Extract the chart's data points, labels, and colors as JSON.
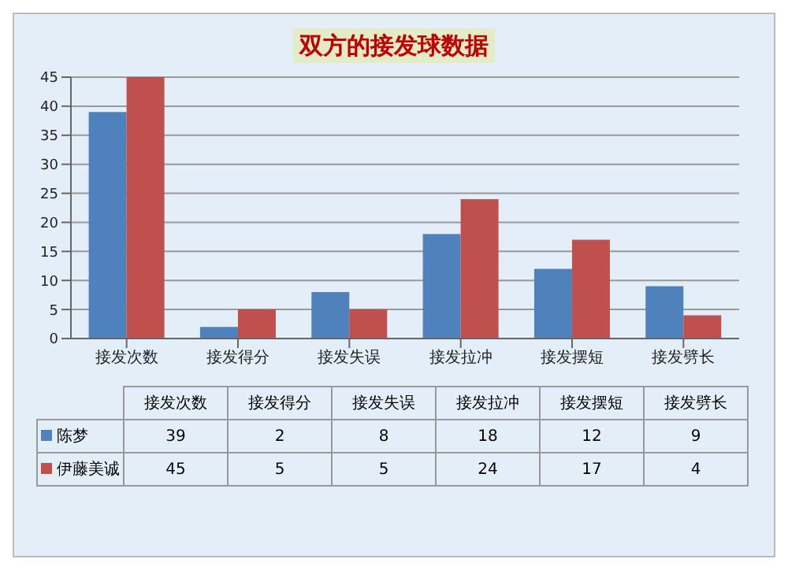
{
  "chart_data": {
    "type": "bar",
    "title": "双方的接发球数据",
    "categories": [
      "接发次数",
      "接发得分",
      "接发失误",
      "接发拉冲",
      "接发摆短",
      "接发劈长"
    ],
    "series": [
      {
        "name": "陈梦",
        "color": "#4f81bd",
        "values": [
          39,
          2,
          8,
          18,
          12,
          9
        ]
      },
      {
        "name": "伊藤美诚",
        "color": "#c0504d",
        "values": [
          45,
          5,
          5,
          24,
          17,
          4
        ]
      }
    ],
    "ylim": [
      0,
      45
    ],
    "yticks": [
      0,
      5,
      10,
      15,
      20,
      25,
      30,
      35,
      40,
      45
    ],
    "grid": "y",
    "legend": "bottom",
    "data_labels": true
  }
}
